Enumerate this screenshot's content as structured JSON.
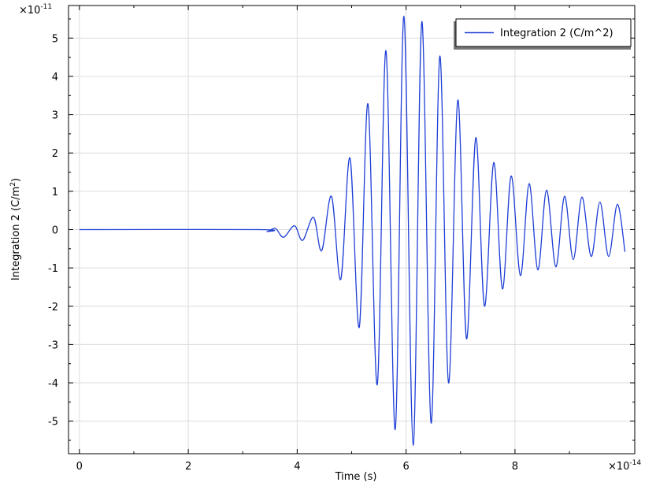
{
  "chart_data": {
    "type": "line",
    "title": "",
    "xlabel": "Time (s)",
    "ylabel": "Integration 2 (C/m",
    "ylabel_superscript": "2",
    "ylabel_suffix": ")",
    "x_multiplier": "×10",
    "x_multiplier_exp": "-14",
    "y_multiplier": "×10",
    "y_multiplier_exp": "-11",
    "xlim": [
      -0.2,
      10.2
    ],
    "ylim": [
      -5.85,
      5.85
    ],
    "x_ticks": [
      0,
      2,
      4,
      6,
      8
    ],
    "y_ticks": [
      5,
      4,
      3,
      2,
      1,
      0,
      -1,
      -2,
      -3,
      -4,
      -5
    ],
    "x_tick_labels": [
      "0",
      "2",
      "4",
      "6",
      "8"
    ],
    "y_tick_labels": [
      "5",
      "4",
      "3",
      "2",
      "1",
      "0",
      "-1",
      "-2",
      "-3",
      "-4",
      "-5"
    ],
    "grid": true,
    "legend_position": "top-right",
    "series": [
      {
        "name": "Integration 2 (C/m^2)",
        "color": "#1f3fd6",
        "x": [
          0,
          3.3,
          3.45,
          3.6,
          3.75,
          3.95,
          4.1,
          4.3,
          4.45,
          4.63,
          4.8,
          4.97,
          5.14,
          5.3,
          5.47,
          5.63,
          5.8,
          5.96,
          6.13,
          6.29,
          6.46,
          6.62,
          6.78,
          6.95,
          7.11,
          7.28,
          7.44,
          7.61,
          7.77,
          7.93,
          8.1,
          8.26,
          8.42,
          8.58,
          8.75,
          8.91,
          9.07,
          9.23,
          9.4,
          9.56,
          9.72,
          9.88,
          10.02
        ],
        "y": [
          0,
          0,
          -0.05,
          0.03,
          -0.2,
          0.1,
          -0.28,
          0.32,
          -0.55,
          0.87,
          -1.3,
          1.87,
          -2.55,
          3.28,
          -4.05,
          4.67,
          -5.22,
          5.57,
          -5.63,
          5.43,
          -5.05,
          4.53,
          -4.0,
          3.38,
          -2.85,
          2.4,
          -2.0,
          1.75,
          -1.55,
          1.4,
          -1.2,
          1.2,
          -1.05,
          1.03,
          -0.97,
          0.87,
          -0.78,
          0.85,
          -0.7,
          0.72,
          -0.7,
          0.66,
          -0.58
        ]
      }
    ]
  }
}
